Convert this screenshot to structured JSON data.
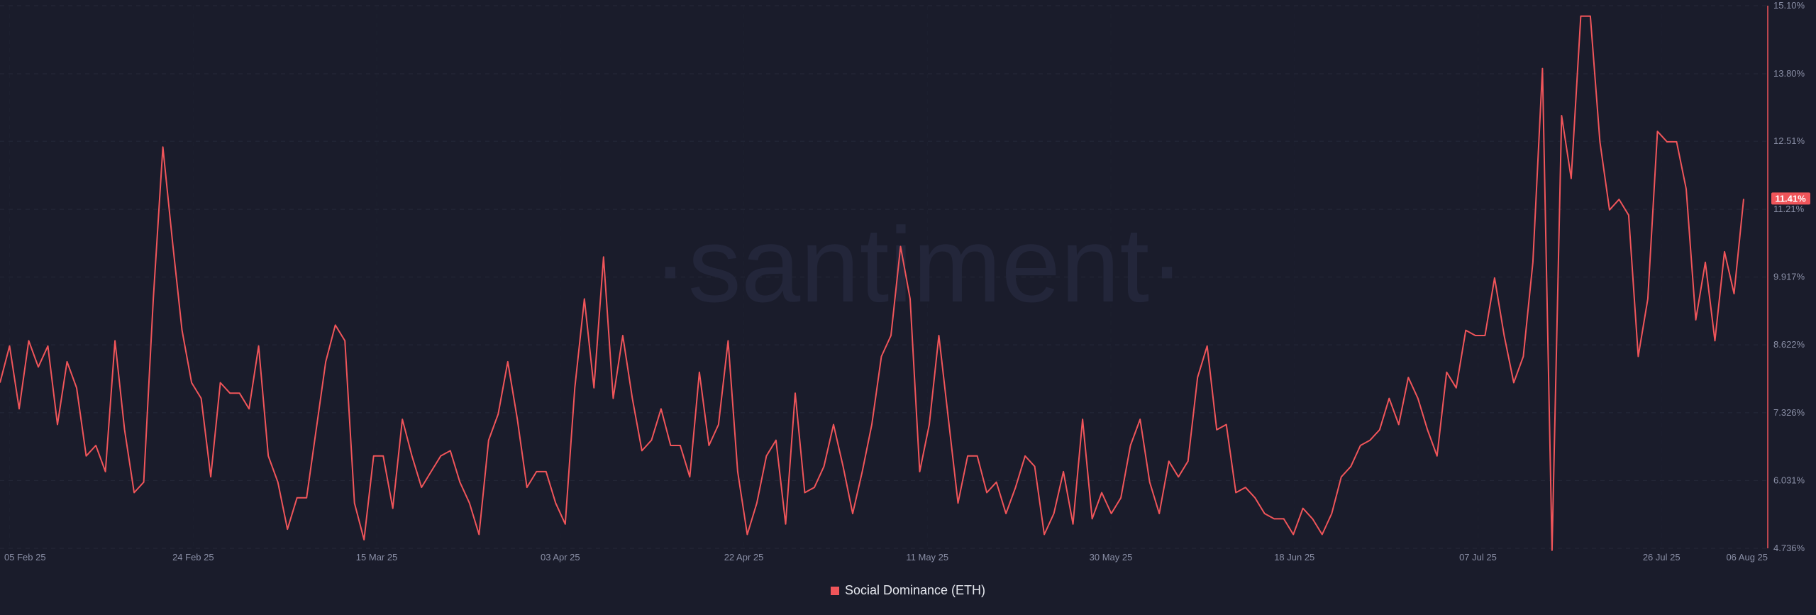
{
  "watermark": "·santiment·",
  "legend": {
    "label": "Social Dominance (ETH)",
    "color": "#f0555a"
  },
  "current_value_label": "11.41%",
  "chart_data": {
    "type": "line",
    "title": "",
    "xlabel": "",
    "ylabel": "",
    "ylim": [
      4.736,
      15.1
    ],
    "y_ticks": [
      "15.10%",
      "13.80%",
      "12.51%",
      "11.21%",
      "9.917%",
      "8.622%",
      "7.326%",
      "6.031%",
      "4.736%"
    ],
    "y_tick_values": [
      15.1,
      13.8,
      12.51,
      11.21,
      9.917,
      8.622,
      7.326,
      6.031,
      4.736
    ],
    "x_ticks": [
      "05 Feb 25",
      "24 Feb 25",
      "15 Mar 25",
      "03 Apr 25",
      "22 Apr 25",
      "11 May 25",
      "30 May 25",
      "18 Jun 25",
      "07 Jul 25",
      "26 Jul 25",
      "06 Aug 25"
    ],
    "x_start": "2025-02-04",
    "x_end": "2025-08-06",
    "grid": true,
    "line_color": "#f0555a",
    "series": [
      {
        "name": "Social Dominance (ETH)",
        "values": [
          7.9,
          8.6,
          7.4,
          8.7,
          8.2,
          8.6,
          7.1,
          8.3,
          7.8,
          6.5,
          6.7,
          6.2,
          8.7,
          7.0,
          5.8,
          6.0,
          9.5,
          12.4,
          10.6,
          8.9,
          7.9,
          7.6,
          6.1,
          7.9,
          7.7,
          7.7,
          7.4,
          8.6,
          6.5,
          6.0,
          5.1,
          5.7,
          5.7,
          7.0,
          8.3,
          9.0,
          8.7,
          5.6,
          4.9,
          6.5,
          6.5,
          5.5,
          7.2,
          6.5,
          5.9,
          6.2,
          6.5,
          6.6,
          6.0,
          5.6,
          5.0,
          6.8,
          7.3,
          8.3,
          7.2,
          5.9,
          6.2,
          6.2,
          5.6,
          5.2,
          7.8,
          9.5,
          7.8,
          10.3,
          7.6,
          8.8,
          7.6,
          6.6,
          6.8,
          7.4,
          6.7,
          6.7,
          6.1,
          8.1,
          6.7,
          7.1,
          8.7,
          6.2,
          5.0,
          5.6,
          6.5,
          6.8,
          5.2,
          7.7,
          5.8,
          5.9,
          6.3,
          7.1,
          6.3,
          5.4,
          6.2,
          7.1,
          8.4,
          8.8,
          10.5,
          9.5,
          6.2,
          7.1,
          8.8,
          7.2,
          5.6,
          6.5,
          6.5,
          5.8,
          6.0,
          5.4,
          5.9,
          6.5,
          6.3,
          5.0,
          5.4,
          6.2,
          5.2,
          7.2,
          5.3,
          5.8,
          5.4,
          5.7,
          6.7,
          7.2,
          6.0,
          5.4,
          6.4,
          6.1,
          6.4,
          8.0,
          8.6,
          7.0,
          7.1,
          5.8,
          5.9,
          5.7,
          5.4,
          5.3,
          5.3,
          5.0,
          5.5,
          5.3,
          5.0,
          5.4,
          6.1,
          6.3,
          6.7,
          6.8,
          7.0,
          7.6,
          7.1,
          8.0,
          7.6,
          7.0,
          6.5,
          8.1,
          7.8,
          8.9,
          8.8,
          8.8,
          9.9,
          8.8,
          7.9,
          8.4,
          10.2,
          13.9,
          4.7,
          13.0,
          11.8,
          14.9,
          14.9,
          12.5,
          11.2,
          11.4,
          11.1,
          8.4,
          9.5,
          12.7,
          12.5,
          12.5,
          11.6,
          9.1,
          10.2,
          8.7,
          10.4,
          9.6,
          11.41
        ]
      }
    ]
  }
}
